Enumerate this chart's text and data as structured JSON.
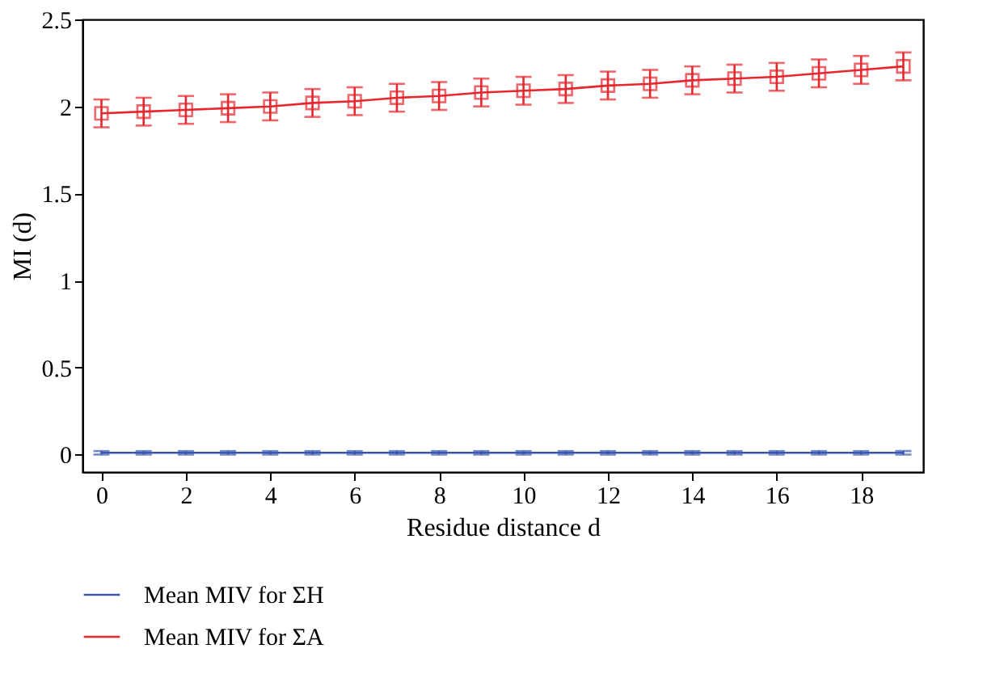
{
  "chart_data": {
    "type": "line",
    "xlabel": "Residue distance d",
    "ylabel": "MI (d)",
    "x": [
      0,
      1,
      2,
      3,
      4,
      5,
      6,
      7,
      8,
      9,
      10,
      11,
      12,
      13,
      14,
      15,
      16,
      17,
      18,
      19
    ],
    "series": [
      {
        "name": "Mean MIV for ΣH",
        "color": "#3a57b0",
        "marker": "none",
        "values": [
          0.01,
          0.01,
          0.01,
          0.01,
          0.01,
          0.01,
          0.01,
          0.01,
          0.01,
          0.01,
          0.01,
          0.01,
          0.01,
          0.01,
          0.01,
          0.01,
          0.01,
          0.01,
          0.01,
          0.01
        ],
        "errors": [
          0.01,
          0.01,
          0.01,
          0.01,
          0.01,
          0.01,
          0.01,
          0.01,
          0.01,
          0.01,
          0.01,
          0.01,
          0.01,
          0.01,
          0.01,
          0.01,
          0.01,
          0.01,
          0.01,
          0.01
        ]
      },
      {
        "name": "Mean MIV for ΣA",
        "color": "#e8262d",
        "marker": "square",
        "values": [
          1.96,
          1.97,
          1.98,
          1.99,
          2.0,
          2.02,
          2.03,
          2.05,
          2.06,
          2.08,
          2.09,
          2.1,
          2.12,
          2.13,
          2.15,
          2.16,
          2.17,
          2.19,
          2.21,
          2.23
        ],
        "errors": [
          0.08,
          0.08,
          0.08,
          0.08,
          0.08,
          0.08,
          0.08,
          0.08,
          0.08,
          0.08,
          0.08,
          0.08,
          0.08,
          0.08,
          0.08,
          0.08,
          0.08,
          0.08,
          0.08,
          0.08
        ]
      }
    ],
    "xlim": [
      -0.45,
      19.47
    ],
    "xticks": [
      0,
      2,
      4,
      6,
      8,
      10,
      12,
      14,
      16,
      18
    ],
    "ylim": [
      -0.1,
      2.5
    ],
    "yticks": [
      0,
      0.5,
      1,
      1.5,
      2,
      2.5
    ],
    "grid": false,
    "legend": "bottom",
    "line_style": "solid"
  }
}
